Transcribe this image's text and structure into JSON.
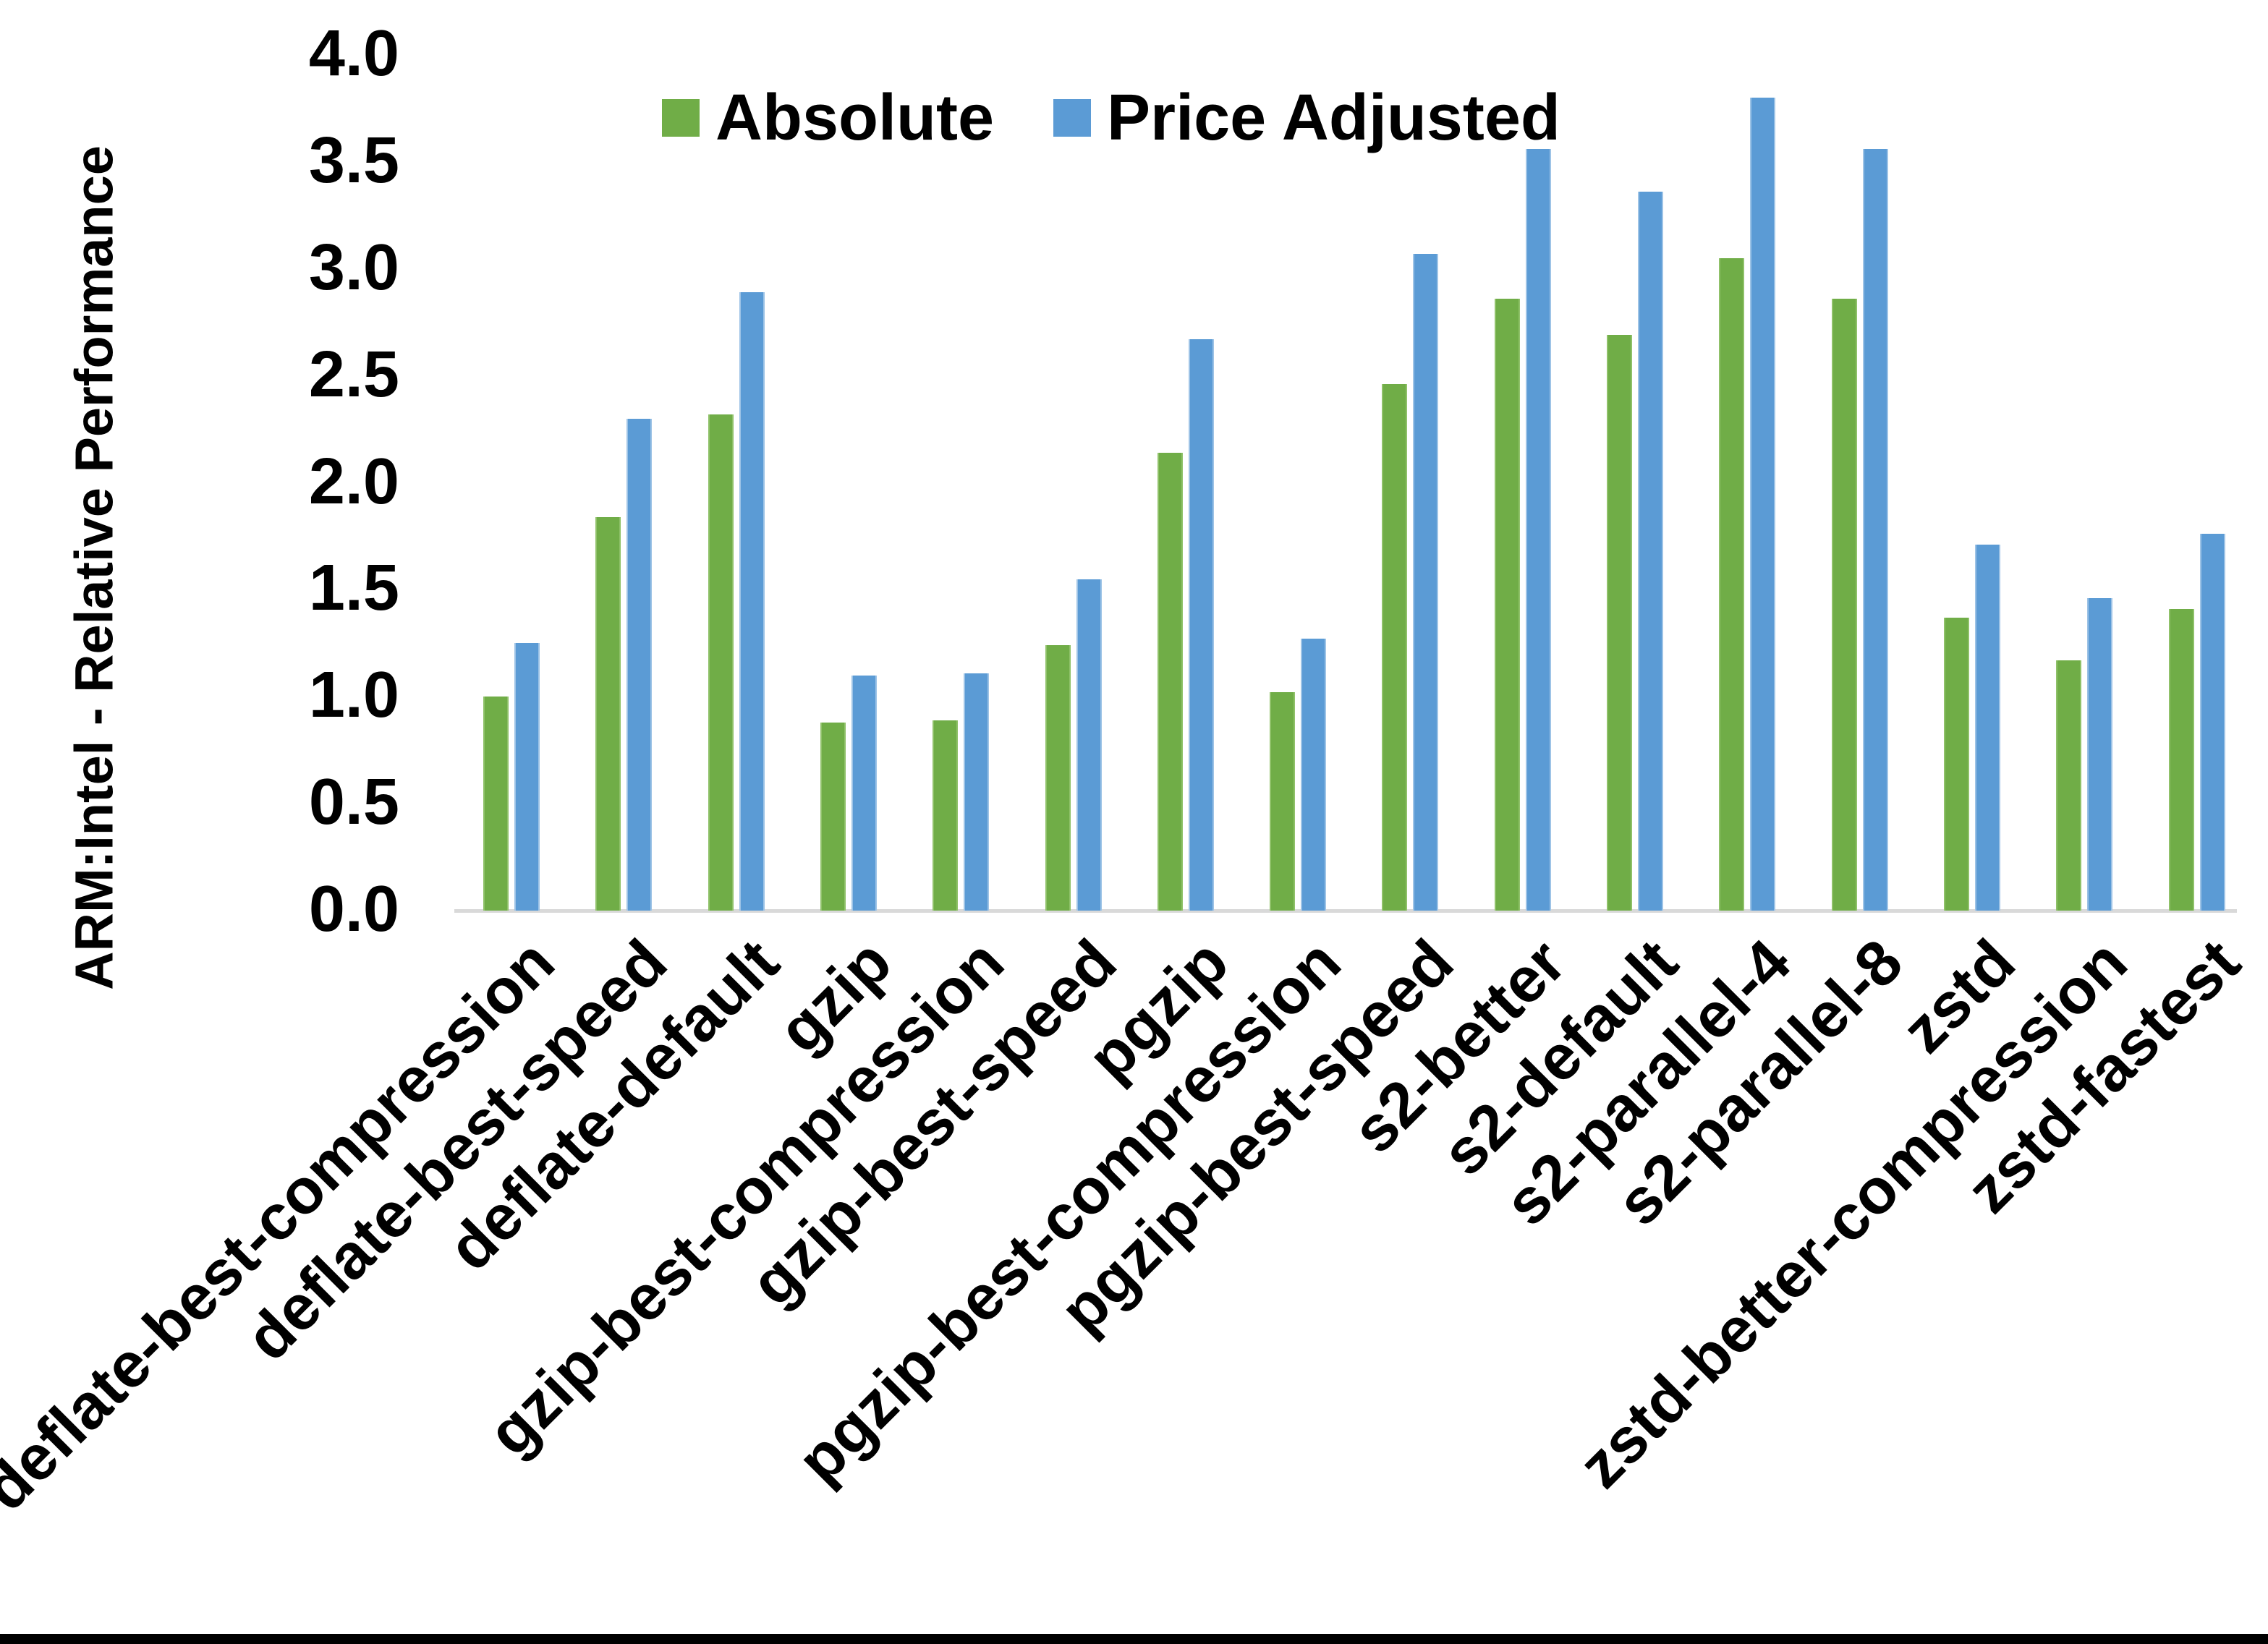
{
  "page": {
    "background": "#ffffff",
    "bottom_bar_color": "#000000",
    "axis_line_color": "#d9d9d9",
    "text_color": "#000000"
  },
  "chart_data": {
    "type": "bar",
    "title": "",
    "xlabel": "",
    "ylabel": "ARM:Intel - Relative Performance",
    "ylim": [
      0.0,
      4.0
    ],
    "ytick_step": 0.5,
    "ytick_labels": [
      "0.0",
      "0.5",
      "1.0",
      "1.5",
      "2.0",
      "2.5",
      "3.0",
      "3.5",
      "4.0"
    ],
    "grid": false,
    "legend_position": "top-center",
    "categories": [
      "deflate-best-compression",
      "deflate-best-speed",
      "deflate-default",
      "gzip",
      "gzip-best-compression",
      "gzip-best-speed",
      "pgzip",
      "pgzip-best-compression",
      "pgzip-best-speed",
      "s2-better",
      "s2-default",
      "s2-parallel-4",
      "s2-parallel-8",
      "zstd",
      "zstd-better-compression",
      "zstd-fastest"
    ],
    "series": [
      {
        "name": "Absolute",
        "color": "#70AD47",
        "border_color": "#8fc169",
        "values": [
          1.0,
          1.84,
          2.32,
          0.88,
          0.89,
          1.24,
          2.14,
          1.02,
          2.46,
          2.86,
          2.69,
          3.05,
          2.86,
          1.37,
          1.17,
          1.41
        ]
      },
      {
        "name": "Price Adjusted",
        "color": "#5B9BD5",
        "border_color": "#9dc3e6",
        "values": [
          1.25,
          2.3,
          2.89,
          1.1,
          1.11,
          1.55,
          2.67,
          1.27,
          3.07,
          3.56,
          3.36,
          3.8,
          3.56,
          1.71,
          1.46,
          1.76
        ]
      }
    ]
  }
}
